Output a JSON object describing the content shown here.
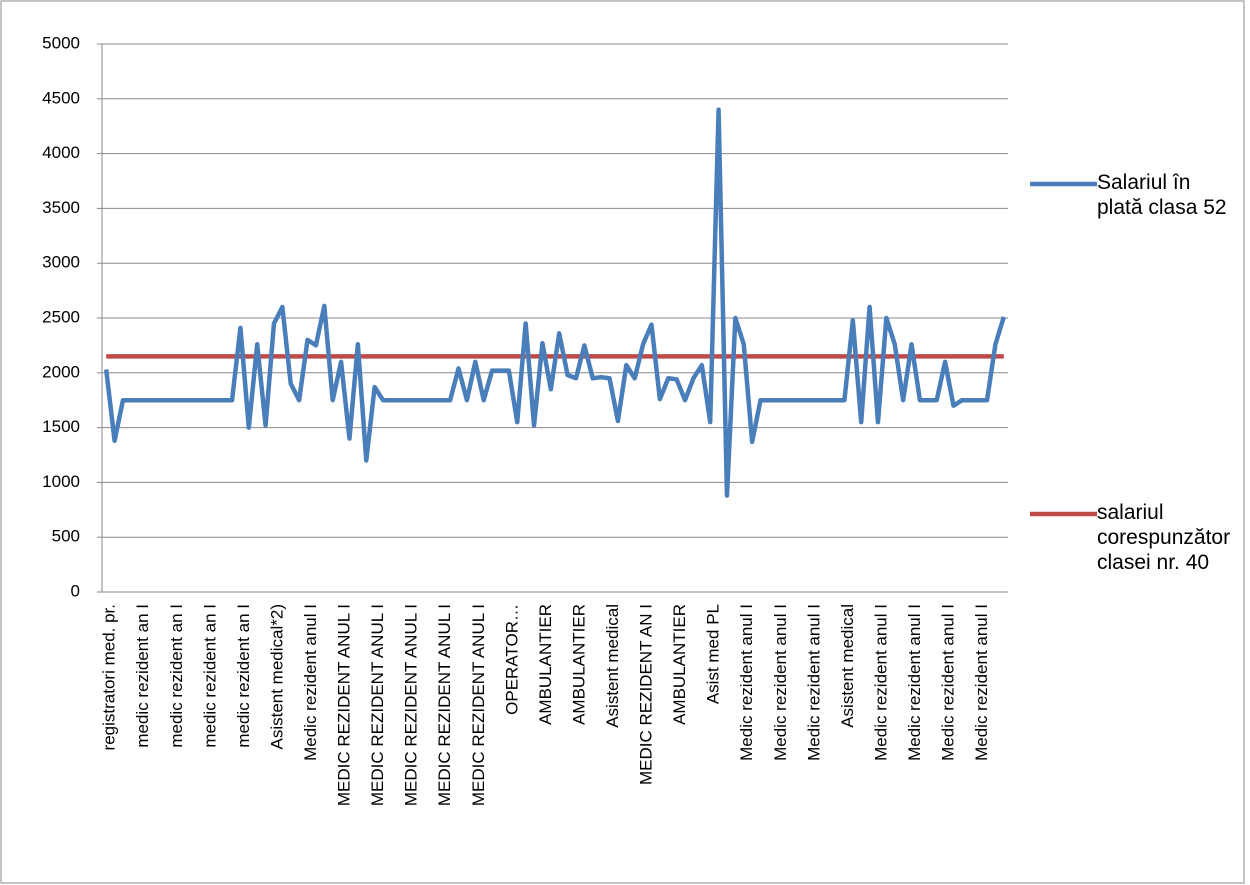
{
  "chart_data": {
    "type": "line",
    "categories": [
      "registratori med. pr.",
      null,
      null,
      null,
      "medic rezident an I",
      null,
      null,
      null,
      "medic rezident an I",
      null,
      null,
      null,
      "medic rezident an I",
      null,
      null,
      null,
      "medic rezident an I",
      null,
      null,
      null,
      "Asistent medical*2)",
      null,
      null,
      null,
      "Medic rezident anul  I",
      null,
      null,
      null,
      "MEDIC REZIDENT ANUL I",
      null,
      null,
      null,
      "MEDIC REZIDENT ANUL I",
      null,
      null,
      null,
      "MEDIC REZIDENT ANUL I",
      null,
      null,
      null,
      "MEDIC REZIDENT ANUL I",
      null,
      null,
      null,
      "MEDIC REZIDENT ANUL I",
      null,
      null,
      null,
      "OPERATOR…",
      null,
      null,
      null,
      "AMBULANTIER",
      null,
      null,
      null,
      "AMBULANTIER",
      null,
      null,
      null,
      "Asistent medical",
      null,
      null,
      null,
      "MEDIC REZIDENT AN I",
      null,
      null,
      null,
      "AMBULANTIER",
      null,
      null,
      null,
      "Asist med PL",
      null,
      null,
      null,
      "Medic rezident anul I",
      null,
      null,
      null,
      "Medic rezident anul I",
      null,
      null,
      null,
      "Medic rezident anul I",
      null,
      null,
      null,
      "Asistent medical",
      null,
      null,
      null,
      "Medic rezident anul I",
      null,
      null,
      null,
      "Medic rezident anul I",
      null,
      null,
      null,
      "Medic rezident anul I",
      null,
      null,
      null,
      "Medic rezident anul I",
      null,
      null,
      null
    ],
    "series": [
      {
        "name": "Salariul în plată clasa 52",
        "color": "#4a7ebb",
        "values": [
          2030,
          1380,
          1750,
          1750,
          1750,
          1750,
          1750,
          1750,
          1750,
          1750,
          1750,
          1750,
          1750,
          1750,
          1750,
          1750,
          2410,
          1500,
          2260,
          1520,
          2450,
          2600,
          1900,
          1750,
          2300,
          2250,
          2610,
          1750,
          2100,
          1400,
          2260,
          1200,
          1870,
          1750,
          1750,
          1750,
          1750,
          1750,
          1750,
          1750,
          1750,
          1750,
          2040,
          1750,
          2100,
          1750,
          2020,
          2020,
          2020,
          1550,
          2450,
          1520,
          2270,
          1850,
          2360,
          1980,
          1950,
          2250,
          1950,
          1960,
          1950,
          1560,
          2070,
          1950,
          2260,
          2440,
          1760,
          1950,
          1940,
          1750,
          1950,
          2070,
          1550,
          4400,
          880,
          2500,
          2260,
          1370,
          1750,
          1750,
          1750,
          1750,
          1750,
          1750,
          1750,
          1750,
          1750,
          1750,
          1750,
          2480,
          1550,
          2600,
          1550,
          2500,
          2260,
          1750,
          2260,
          1750,
          1750,
          1750,
          2100,
          1700,
          1750,
          1750,
          1750,
          1750,
          2260,
          2510
        ]
      },
      {
        "name": "salariul corespunzător clasei nr. 40",
        "color": "#be4b48",
        "values": [
          2150,
          2150,
          2150,
          2150,
          2150,
          2150,
          2150,
          2150,
          2150,
          2150,
          2150,
          2150,
          2150,
          2150,
          2150,
          2150,
          2150,
          2150,
          2150,
          2150,
          2150,
          2150,
          2150,
          2150,
          2150,
          2150,
          2150,
          2150,
          2150,
          2150,
          2150,
          2150,
          2150,
          2150,
          2150,
          2150,
          2150,
          2150,
          2150,
          2150,
          2150,
          2150,
          2150,
          2150,
          2150,
          2150,
          2150,
          2150,
          2150,
          2150,
          2150,
          2150,
          2150,
          2150,
          2150,
          2150,
          2150,
          2150,
          2150,
          2150,
          2150,
          2150,
          2150,
          2150,
          2150,
          2150,
          2150,
          2150,
          2150,
          2150,
          2150,
          2150,
          2150,
          2150,
          2150,
          2150,
          2150,
          2150,
          2150,
          2150,
          2150,
          2150,
          2150,
          2150,
          2150,
          2150,
          2150,
          2150,
          2150,
          2150,
          2150,
          2150,
          2150,
          2150,
          2150,
          2150,
          2150,
          2150,
          2150,
          2150,
          2150,
          2150,
          2150,
          2150,
          2150,
          2150,
          2150,
          2150
        ]
      }
    ],
    "ylim": [
      0,
      5000
    ],
    "yticks": [
      0,
      500,
      1000,
      1500,
      2000,
      2500,
      3000,
      3500,
      4000,
      4500,
      5000
    ],
    "grid": true,
    "legend": "right"
  }
}
